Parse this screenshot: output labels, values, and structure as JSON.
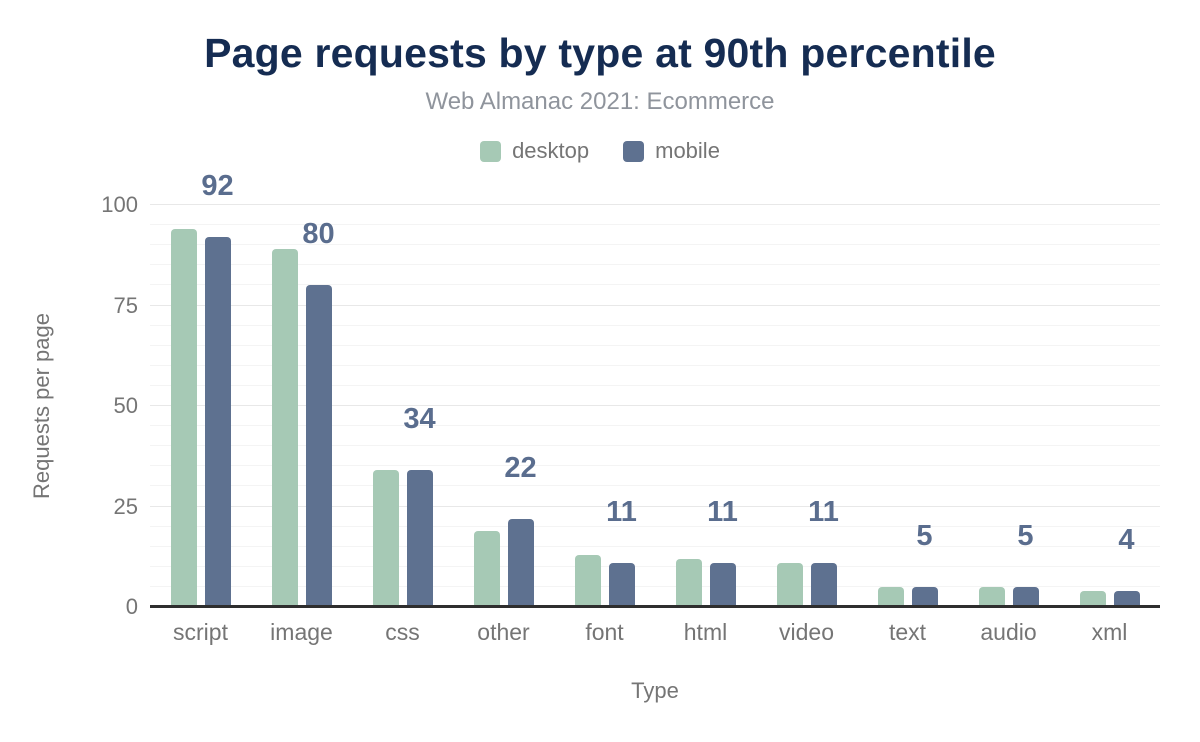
{
  "title": "Page requests by type at 90th percentile",
  "subtitle": "Web Almanac 2021: Ecommerce",
  "legend": {
    "items": [
      {
        "label": "desktop",
        "color": "#a6c9b5"
      },
      {
        "label": "mobile",
        "color": "#5e7190"
      }
    ]
  },
  "chart_data": {
    "type": "bar",
    "title": "Page requests by type at 90th percentile",
    "subtitle": "Web Almanac 2021: Ecommerce",
    "categories": [
      "script",
      "image",
      "css",
      "other",
      "font",
      "html",
      "video",
      "text",
      "audio",
      "xml"
    ],
    "series": [
      {
        "name": "desktop",
        "color": "#a6c9b5",
        "values": [
          94,
          89,
          34,
          19,
          13,
          12,
          11,
          5,
          5,
          4
        ]
      },
      {
        "name": "mobile",
        "color": "#5e7190",
        "values": [
          92,
          80,
          34,
          22,
          11,
          11,
          11,
          5,
          5,
          4
        ]
      }
    ],
    "bar_labels": {
      "annotated_series": "mobile",
      "values": [
        "92",
        "80",
        "34",
        "22",
        "11",
        "11",
        "11",
        "5",
        "5",
        "4"
      ]
    },
    "xlabel": "Type",
    "ylabel": "Requests per page",
    "ylim": [
      0,
      100
    ],
    "yticks": [
      "0",
      "25",
      "50",
      "75",
      "100"
    ],
    "minor_gridline_step": 5,
    "grid": true,
    "legend_position": "top"
  },
  "colors": {
    "background": "#ffffff",
    "title": "#152c52",
    "subtitle": "#8f949c",
    "axis_text": "#757575",
    "bar_label": "#5a6d8e",
    "axis_line": "#2e2e2e",
    "gridline_major": "#e8e8e8",
    "gridline_minor": "#f4f4f4",
    "desktop_bar": "#a6c9b5",
    "mobile_bar": "#5e7190"
  }
}
